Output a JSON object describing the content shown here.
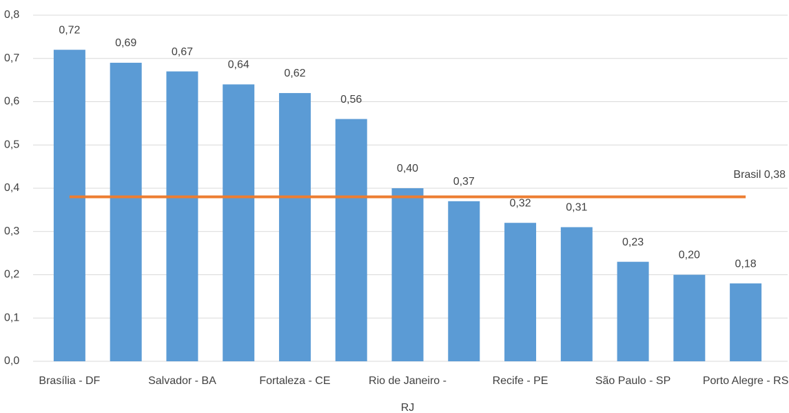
{
  "chart_data": {
    "type": "bar",
    "categories": [
      "Brasília - DF",
      null,
      "Salvador - BA",
      null,
      "Fortaleza - CE",
      null,
      "Rio de Janeiro - RJ",
      null,
      "Recife - PE",
      null,
      "São Paulo - SP",
      null,
      "Porto Alegre - RS"
    ],
    "values": [
      0.72,
      0.69,
      0.67,
      0.64,
      0.62,
      0.56,
      0.4,
      0.37,
      0.32,
      0.31,
      0.23,
      0.2,
      0.18
    ],
    "value_labels": [
      "0,72",
      "0,69",
      "0,67",
      "0,64",
      "0,62",
      "0,56",
      "0,40",
      "0,37",
      "0,32",
      "0,31",
      "0,23",
      "0,20",
      "0,18"
    ],
    "color": "#5b9bd5",
    "ylim": [
      0,
      0.8
    ],
    "yticks": [
      {
        "value": 0,
        "label": "0,0"
      },
      {
        "value": 0.1,
        "label": "0,1"
      },
      {
        "value": 0.2,
        "label": "0,2"
      },
      {
        "value": 0.3,
        "label": "0,3"
      },
      {
        "value": 0.4,
        "label": "0,4"
      },
      {
        "value": 0.5,
        "label": "0,5"
      },
      {
        "value": 0.6,
        "label": "0,6"
      },
      {
        "value": 0.7,
        "label": "0,7"
      },
      {
        "value": 0.8,
        "label": "0,8"
      }
    ],
    "grid": true,
    "reference_line": {
      "value": 0.38,
      "label": "Brasil 0,38",
      "color": "#ed7d31"
    }
  }
}
